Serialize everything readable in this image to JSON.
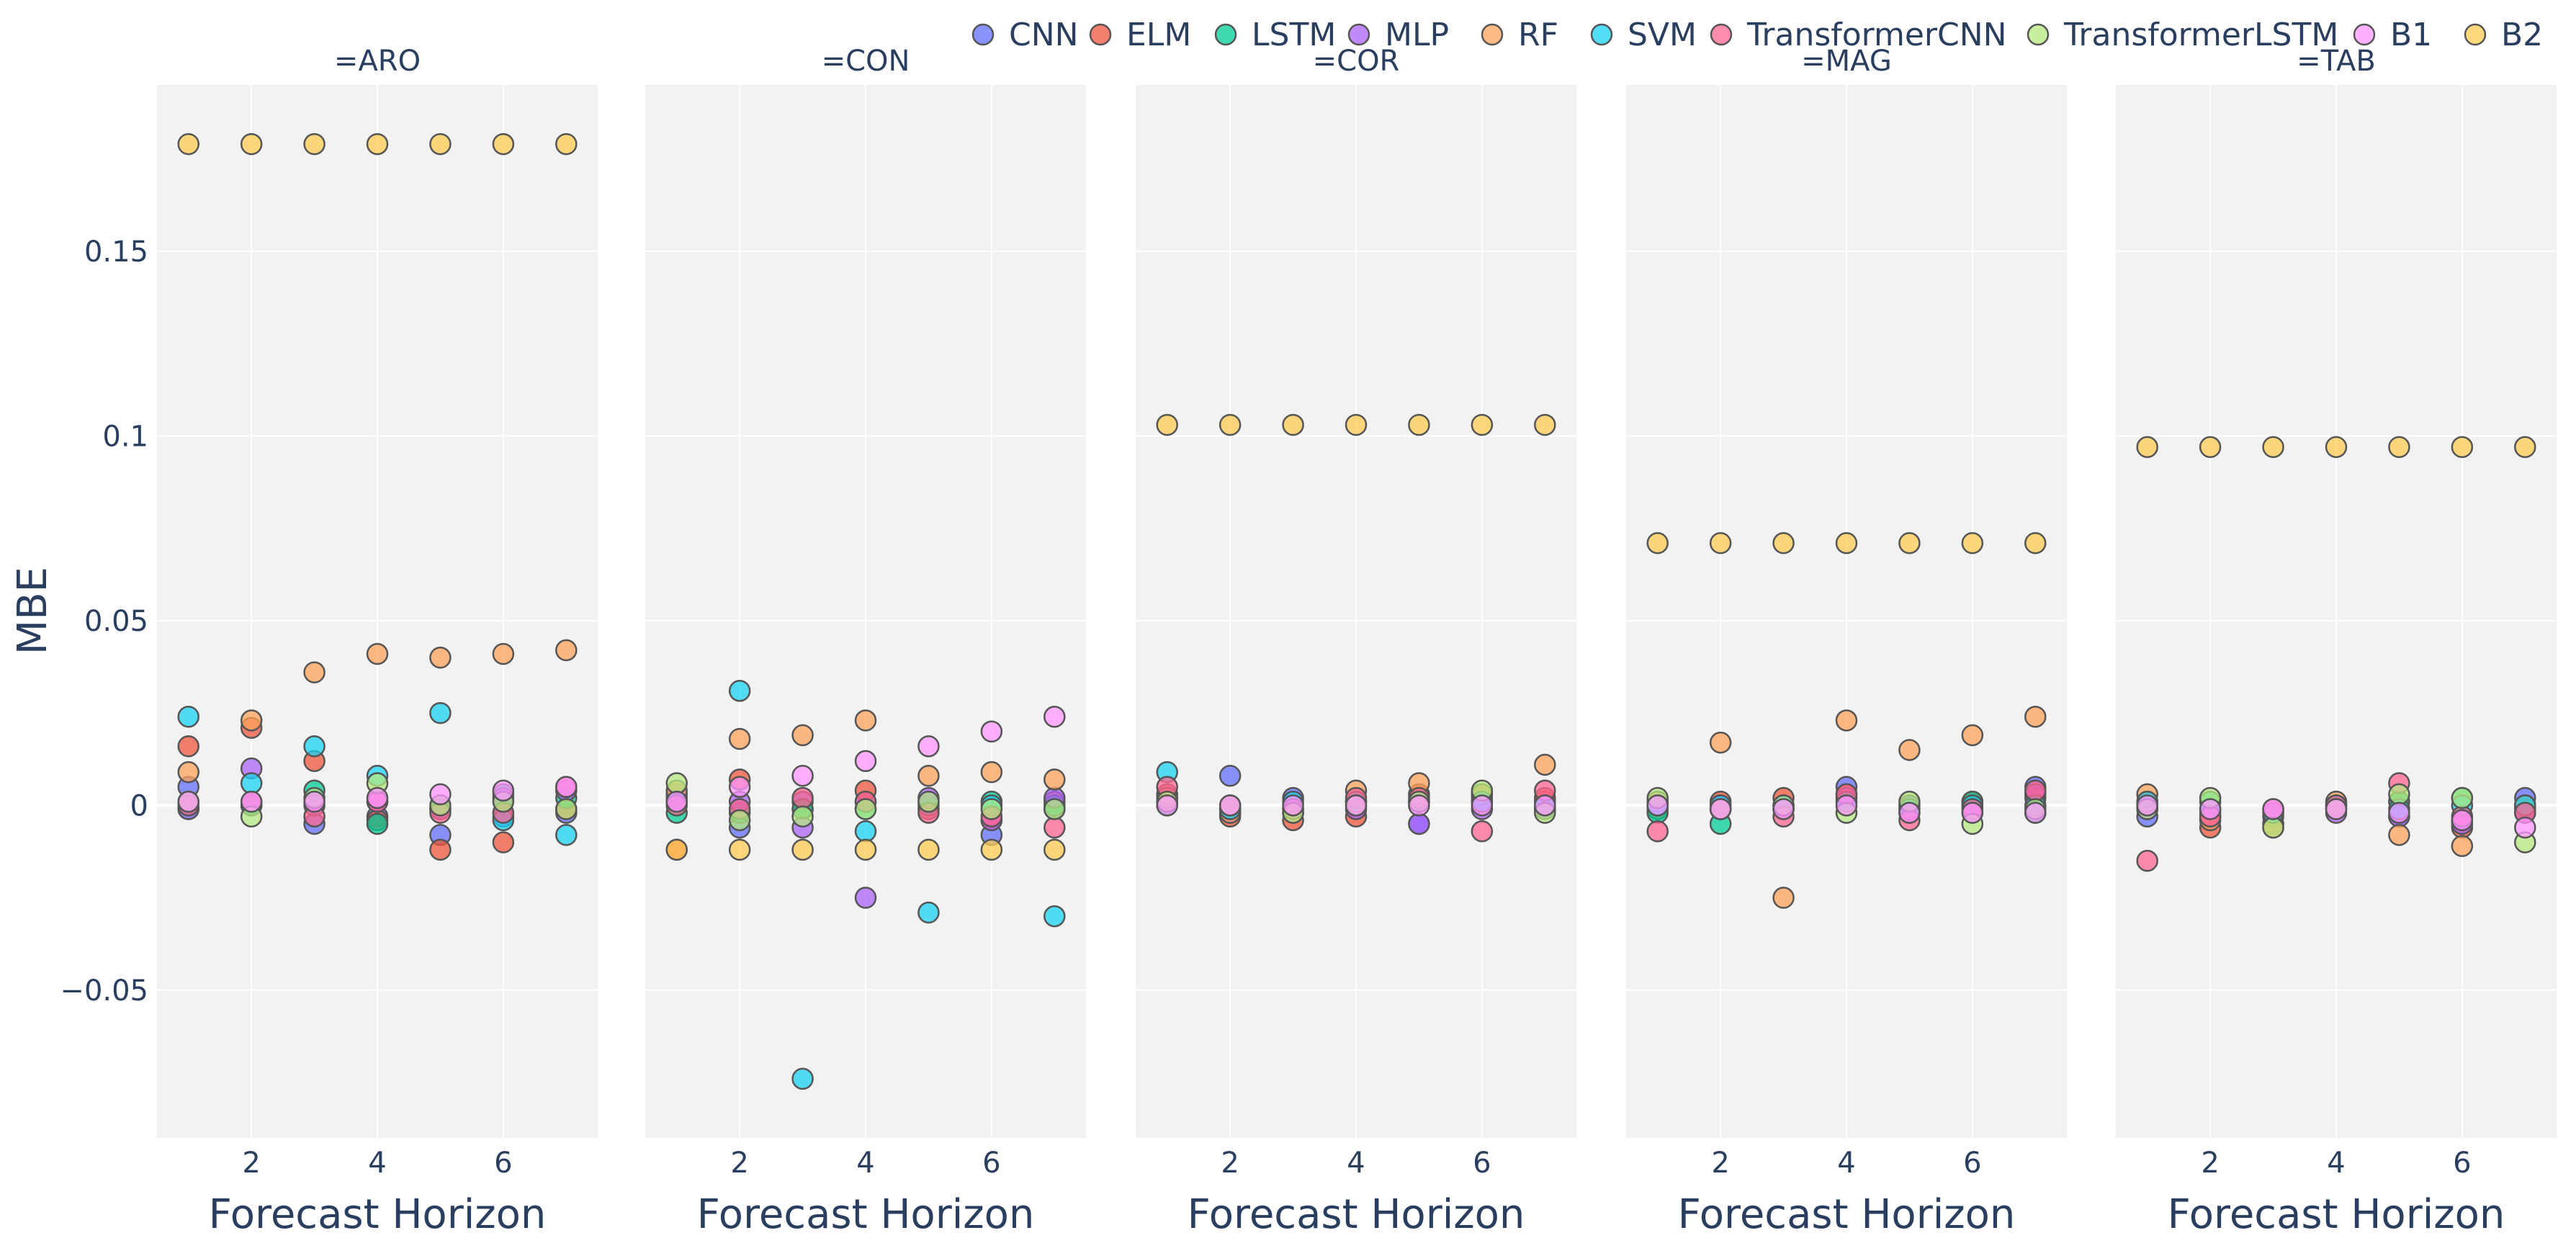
{
  "chart_data": {
    "type": "scatter",
    "title": "",
    "ylabel": "MBE",
    "xlabel": "Forecast Horizon",
    "x": [
      1,
      2,
      3,
      4,
      5,
      6,
      7
    ],
    "xticks": [
      2,
      4,
      6
    ],
    "xtick_labels": [
      "2",
      "4",
      "6"
    ],
    "xlim": [
      0.5,
      7.5
    ],
    "ylim": [
      -0.09,
      0.195
    ],
    "yticks": [
      -0.05,
      0,
      0.05,
      0.1,
      0.15
    ],
    "ytick_labels": [
      "−0.05",
      "0",
      "0.05",
      "0.1",
      "0.15"
    ],
    "legend_placement": "top",
    "legend": [
      {
        "name": "CNN",
        "color": "#636efa"
      },
      {
        "name": "ELM",
        "color": "#EF553B"
      },
      {
        "name": "LSTM",
        "color": "#00cc96"
      },
      {
        "name": "MLP",
        "color": "#ab63fa"
      },
      {
        "name": "RF",
        "color": "#FFA15A"
      },
      {
        "name": "SVM",
        "color": "#19d3f3"
      },
      {
        "name": "TransformerCNN",
        "color": "#FF6692"
      },
      {
        "name": "TransformerLSTM",
        "color": "#B6E880"
      },
      {
        "name": "B1",
        "color": "#FF97FF"
      },
      {
        "name": "B2",
        "color": "#FECB52"
      }
    ],
    "panels": [
      {
        "title": "=ARO",
        "series": [
          {
            "name": "CNN",
            "values": [
              0.005,
              0.0,
              -0.005,
              -0.003,
              -0.008,
              -0.003,
              -0.002
            ]
          },
          {
            "name": "ELM",
            "values": [
              0.016,
              0.021,
              0.012,
              -0.004,
              -0.012,
              -0.01,
              -0.001
            ]
          },
          {
            "name": "LSTM",
            "values": [
              -0.001,
              0.0,
              0.004,
              -0.005,
              -0.001,
              0.003,
              0.002
            ]
          },
          {
            "name": "MLP",
            "values": [
              -0.001,
              0.01,
              0.0,
              0.001,
              -0.001,
              0.002,
              0.004
            ]
          },
          {
            "name": "RF",
            "values": [
              0.009,
              0.023,
              0.036,
              0.041,
              0.04,
              0.041,
              0.042
            ]
          },
          {
            "name": "SVM",
            "values": [
              0.024,
              0.006,
              0.016,
              0.008,
              0.025,
              -0.004,
              -0.008
            ]
          },
          {
            "name": "TransformerCNN",
            "values": [
              0.0,
              0.001,
              -0.003,
              0.001,
              -0.002,
              -0.002,
              0.005
            ]
          },
          {
            "name": "TransformerLSTM",
            "values": [
              0.001,
              -0.003,
              0.002,
              0.006,
              0.0,
              0.001,
              -0.001
            ]
          },
          {
            "name": "B1",
            "values": [
              0.001,
              0.001,
              0.001,
              0.002,
              0.003,
              0.004,
              0.005
            ]
          },
          {
            "name": "B2",
            "values": [
              0.179,
              0.179,
              0.179,
              0.179,
              0.179,
              0.179,
              0.179
            ]
          }
        ]
      },
      {
        "title": "=CON",
        "series": [
          {
            "name": "CNN",
            "values": [
              0.002,
              -0.006,
              0.001,
              0.001,
              0.001,
              -0.008,
              -0.001
            ]
          },
          {
            "name": "ELM",
            "values": [
              -0.012,
              0.007,
              -0.001,
              0.004,
              -0.001,
              -0.004,
              0.001
            ]
          },
          {
            "name": "LSTM",
            "values": [
              -0.002,
              -0.002,
              -0.001,
              -0.001,
              0.0,
              0.001,
              0.0
            ]
          },
          {
            "name": "MLP",
            "values": [
              0.003,
              0.001,
              -0.006,
              -0.025,
              0.002,
              -0.004,
              0.002
            ]
          },
          {
            "name": "RF",
            "values": [
              0.004,
              0.018,
              0.019,
              0.023,
              0.008,
              0.009,
              0.007
            ]
          },
          {
            "name": "SVM",
            "values": [
              0.001,
              0.031,
              -0.074,
              -0.007,
              -0.029,
              0.0,
              -0.03
            ]
          },
          {
            "name": "TransformerCNN",
            "values": [
              0.0,
              -0.001,
              0.002,
              0.001,
              -0.002,
              -0.003,
              -0.006
            ]
          },
          {
            "name": "TransformerLSTM",
            "values": [
              0.006,
              -0.004,
              -0.003,
              -0.001,
              0.001,
              -0.001,
              -0.001
            ]
          },
          {
            "name": "B1",
            "values": [
              0.001,
              0.005,
              0.008,
              0.012,
              0.016,
              0.02,
              0.024
            ]
          },
          {
            "name": "B2",
            "values": [
              -0.012,
              -0.012,
              -0.012,
              -0.012,
              -0.012,
              -0.012,
              -0.012
            ]
          }
        ]
      },
      {
        "title": "=COR",
        "series": [
          {
            "name": "CNN",
            "values": [
              0.001,
              0.008,
              0.002,
              0.001,
              -0.005,
              0.001,
              0.001
            ]
          },
          {
            "name": "ELM",
            "values": [
              0.003,
              -0.003,
              -0.004,
              -0.003,
              0.003,
              0.003,
              0.002
            ]
          },
          {
            "name": "LSTM",
            "values": [
              0.0,
              -0.001,
              -0.001,
              0.001,
              0.001,
              0.002,
              -0.001
            ]
          },
          {
            "name": "MLP",
            "values": [
              0.001,
              -0.002,
              -0.002,
              -0.001,
              -0.005,
              -0.001,
              -0.001
            ]
          },
          {
            "name": "RF",
            "values": [
              0.002,
              -0.002,
              -0.002,
              0.004,
              0.006,
              0.003,
              0.011
            ]
          },
          {
            "name": "SVM",
            "values": [
              0.009,
              -0.001,
              0.001,
              0.001,
              0.001,
              0.001,
              0.0
            ]
          },
          {
            "name": "TransformerCNN",
            "values": [
              0.005,
              0.0,
              -0.001,
              0.002,
              0.002,
              -0.007,
              0.004
            ]
          },
          {
            "name": "TransformerLSTM",
            "values": [
              0.001,
              0.0,
              -0.002,
              0.0,
              0.001,
              0.004,
              -0.002
            ]
          },
          {
            "name": "B1",
            "values": [
              0.0,
              0.0,
              0.0,
              0.0,
              0.0,
              0.0,
              0.0
            ]
          },
          {
            "name": "B2",
            "values": [
              0.103,
              0.103,
              0.103,
              0.103,
              0.103,
              0.103,
              0.103
            ]
          }
        ]
      },
      {
        "title": "=MAG",
        "series": [
          {
            "name": "CNN",
            "values": [
              0.001,
              -0.001,
              -0.001,
              0.005,
              -0.001,
              0.0,
              0.005
            ]
          },
          {
            "name": "ELM",
            "values": [
              -0.001,
              0.001,
              0.002,
              0.003,
              -0.002,
              0.001,
              0.002
            ]
          },
          {
            "name": "LSTM",
            "values": [
              -0.002,
              -0.005,
              -0.001,
              0.001,
              0.0,
              0.001,
              -0.002
            ]
          },
          {
            "name": "MLP",
            "values": [
              0.001,
              0.0,
              0.0,
              0.002,
              0.0,
              -0.002,
              0.003
            ]
          },
          {
            "name": "RF",
            "values": [
              0.001,
              0.017,
              -0.025,
              0.023,
              0.015,
              0.019,
              0.024
            ]
          },
          {
            "name": "SVM",
            "values": [
              0.0,
              0.0,
              0.0,
              0.001,
              -0.001,
              0.0,
              0.0
            ]
          },
          {
            "name": "TransformerCNN",
            "values": [
              -0.007,
              -0.001,
              -0.003,
              0.003,
              -0.004,
              -0.001,
              0.004
            ]
          },
          {
            "name": "TransformerLSTM",
            "values": [
              0.002,
              -0.001,
              0.0,
              -0.002,
              0.001,
              -0.005,
              -0.001
            ]
          },
          {
            "name": "B1",
            "values": [
              0.0,
              -0.001,
              -0.001,
              0.0,
              -0.002,
              -0.002,
              -0.002
            ]
          },
          {
            "name": "B2",
            "values": [
              0.071,
              0.071,
              0.071,
              0.071,
              0.071,
              0.071,
              0.071
            ]
          }
        ]
      },
      {
        "title": "=TAB",
        "series": [
          {
            "name": "CNN",
            "values": [
              -0.003,
              -0.002,
              -0.005,
              0.0,
              -0.003,
              -0.004,
              0.002
            ]
          },
          {
            "name": "ELM",
            "values": [
              0.001,
              -0.006,
              -0.005,
              -0.001,
              0.001,
              -0.006,
              0.0
            ]
          },
          {
            "name": "LSTM",
            "values": [
              0.0,
              0.001,
              -0.003,
              0.0,
              0.001,
              0.002,
              -0.001
            ]
          },
          {
            "name": "MLP",
            "values": [
              -0.001,
              -0.003,
              -0.002,
              -0.002,
              -0.003,
              -0.005,
              -0.002
            ]
          },
          {
            "name": "RF",
            "values": [
              0.003,
              -0.004,
              -0.006,
              0.001,
              -0.008,
              -0.011,
              0.0
            ]
          },
          {
            "name": "SVM",
            "values": [
              0.001,
              -0.001,
              -0.002,
              0.0,
              -0.001,
              0.0,
              0.0
            ]
          },
          {
            "name": "TransformerCNN",
            "values": [
              -0.015,
              -0.003,
              -0.001,
              0.0,
              0.006,
              -0.003,
              -0.002
            ]
          },
          {
            "name": "TransformerLSTM",
            "values": [
              -0.001,
              0.002,
              -0.006,
              -0.001,
              0.003,
              0.002,
              -0.01
            ]
          },
          {
            "name": "B1",
            "values": [
              0.0,
              -0.001,
              -0.001,
              -0.001,
              -0.002,
              -0.004,
              -0.006
            ]
          },
          {
            "name": "B2",
            "values": [
              0.097,
              0.097,
              0.097,
              0.097,
              0.097,
              0.097,
              0.097
            ]
          }
        ]
      }
    ]
  }
}
